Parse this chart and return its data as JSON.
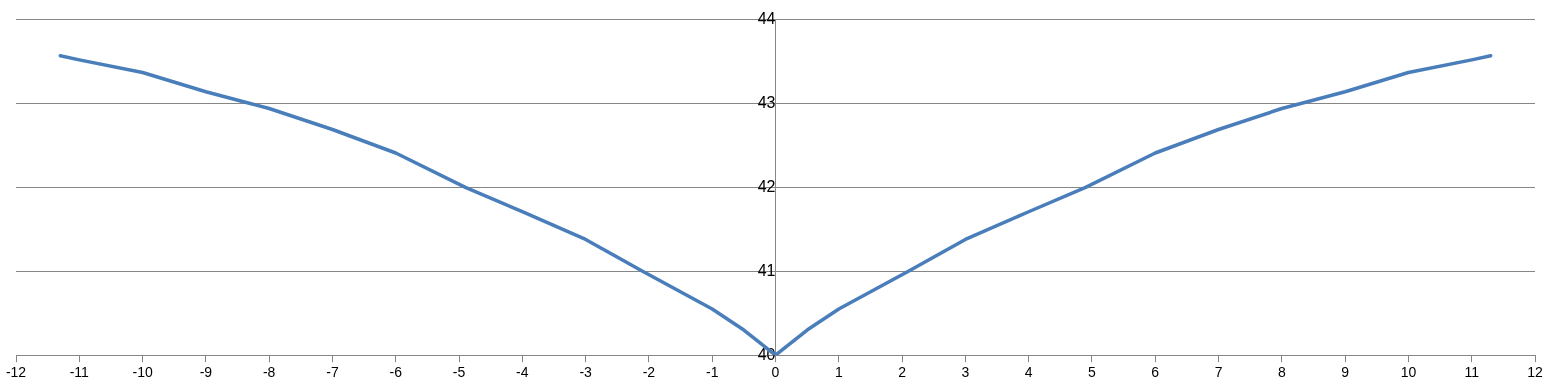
{
  "chart_data": {
    "type": "line",
    "x": [
      -11.3,
      -11,
      -10,
      -9,
      -8.3,
      -8,
      -7,
      -6,
      -4.9,
      -4,
      -3,
      -2.1,
      -1,
      -0.5,
      0,
      0.5,
      1,
      2.1,
      3,
      4,
      4.9,
      6,
      7,
      8,
      8.3,
      9,
      10,
      11,
      11.3
    ],
    "series": [
      {
        "color": "#4a7ebb",
        "values": [
          43.57,
          43.52,
          43.37,
          43.14,
          43,
          42.94,
          42.69,
          42.41,
          42,
          41.71,
          41.38,
          41,
          40.55,
          40.3,
          40,
          40.3,
          40.55,
          41,
          41.38,
          41.71,
          42,
          42.41,
          42.69,
          42.94,
          43,
          43.14,
          43.37,
          43.52,
          43.57
        ]
      }
    ],
    "xlim": [
      -12,
      12
    ],
    "xticks": [
      -12,
      -11,
      -10,
      -9,
      -8,
      -7,
      -6,
      -5,
      -4,
      -3,
      -2,
      -1,
      0,
      1,
      2,
      3,
      4,
      5,
      6,
      7,
      8,
      9,
      10,
      11,
      12
    ],
    "ylim": [
      40,
      44
    ],
    "yticks": [
      40,
      41,
      42,
      43,
      44
    ],
    "grid": "y",
    "legend": false,
    "marker": "none",
    "line_style": "solid"
  }
}
